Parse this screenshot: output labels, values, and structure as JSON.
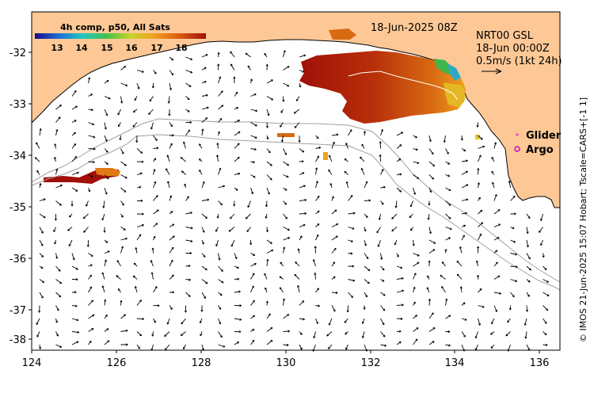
{
  "colorbar": {
    "title": "4h comp, p50, All Sats",
    "ticks": [
      "13",
      "14",
      "15",
      "16",
      "17",
      "18"
    ],
    "colors": [
      "#1a0a8c",
      "#1f6fd6",
      "#22c7c0",
      "#44c04a",
      "#c6d42a",
      "#f0a020",
      "#d95a10",
      "#a01008"
    ]
  },
  "date_label": "18-Jun-2025 08Z",
  "velocity": {
    "source": "NRT00 GSL",
    "time": "18-Jun 00:00Z",
    "scale_label": "0.5m/s (1kt 24h)"
  },
  "legend": {
    "glider_label": "Glider",
    "glider_color": "#ff33cc",
    "argo_label": "Argo",
    "argo_color": "#cc00cc"
  },
  "axes": {
    "x_ticks": [
      "124",
      "126",
      "128",
      "130",
      "132",
      "134",
      "136"
    ],
    "y_ticks": [
      "-32",
      "-33",
      "-34",
      "-35",
      "-36",
      "-37",
      "-38"
    ],
    "lon_range": [
      124,
      136.5
    ],
    "lat_range": [
      -38.1,
      -31.3
    ]
  },
  "credit": "© IMOS 21-Jun-2025 15:07 Hobart; Tscale=CARS+[-1 1]",
  "colors": {
    "land": "#fdc896",
    "coast": "#000000",
    "bathy": "#a0a0a0",
    "sst_warm": "#c0400c",
    "sst_hot": "#a01008"
  }
}
